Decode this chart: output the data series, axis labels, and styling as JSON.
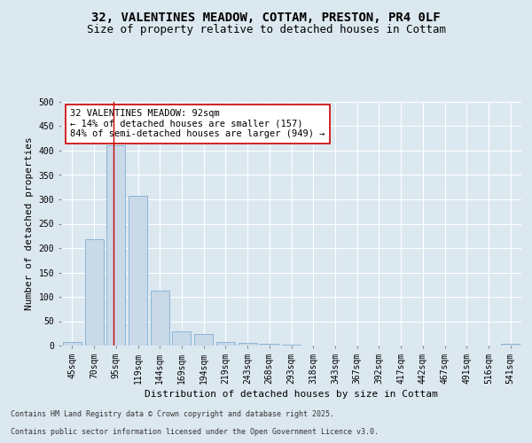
{
  "title_line1": "32, VALENTINES MEADOW, COTTAM, PRESTON, PR4 0LF",
  "title_line2": "Size of property relative to detached houses in Cottam",
  "xlabel": "Distribution of detached houses by size in Cottam",
  "ylabel": "Number of detached properties",
  "categories": [
    "45sqm",
    "70sqm",
    "95sqm",
    "119sqm",
    "144sqm",
    "169sqm",
    "194sqm",
    "219sqm",
    "243sqm",
    "268sqm",
    "293sqm",
    "318sqm",
    "343sqm",
    "367sqm",
    "392sqm",
    "417sqm",
    "442sqm",
    "467sqm",
    "491sqm",
    "516sqm",
    "541sqm"
  ],
  "bar_heights": [
    8,
    218,
    410,
    308,
    113,
    30,
    24,
    8,
    6,
    4,
    1,
    0,
    0,
    0,
    0,
    0,
    0,
    0,
    0,
    0,
    3
  ],
  "bar_color": "#c9d9e8",
  "bar_edgecolor": "#7bafd4",
  "subject_line_color": "#cc0000",
  "annotation_text": "32 VALENTINES MEADOW: 92sqm\n← 14% of detached houses are smaller (157)\n84% of semi-detached houses are larger (949) →",
  "annotation_box_edgecolor": "#cc0000",
  "annotation_box_facecolor": "#ffffff",
  "ylim": [
    0,
    500
  ],
  "yticks": [
    0,
    50,
    100,
    150,
    200,
    250,
    300,
    350,
    400,
    450,
    500
  ],
  "footer_line1": "Contains HM Land Registry data © Crown copyright and database right 2025.",
  "footer_line2": "Contains public sector information licensed under the Open Government Licence v3.0.",
  "background_color": "#dce8f0",
  "plot_background": "#dce8f0",
  "title_fontsize": 10,
  "subtitle_fontsize": 9,
  "axis_label_fontsize": 8,
  "tick_fontsize": 7,
  "annotation_fontsize": 7.5,
  "footer_fontsize": 6
}
